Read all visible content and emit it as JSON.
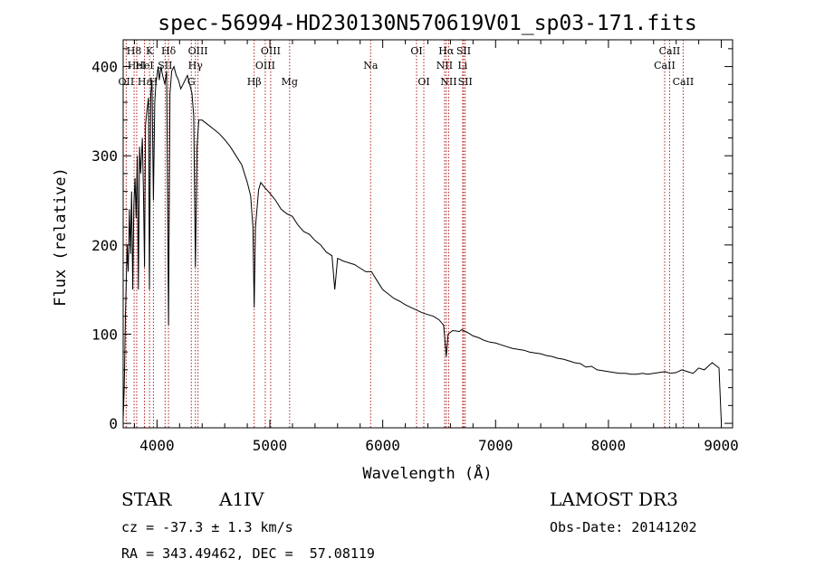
{
  "chart_data": {
    "type": "line",
    "title": "spec-56994-HD230130N570619V01_sp03-171.fits",
    "xlabel": "Wavelength (Å)",
    "ylabel": "Flux (relative)",
    "xlim": [
      3700,
      9100
    ],
    "ylim": [
      -5,
      430
    ],
    "xticks": [
      4000,
      5000,
      6000,
      7000,
      8000,
      9000
    ],
    "yticks": [
      0,
      100,
      200,
      300,
      400
    ],
    "series": [
      {
        "name": "flux",
        "points": [
          [
            3700,
            5
          ],
          [
            3710,
            40
          ],
          [
            3720,
            120
          ],
          [
            3735,
            200
          ],
          [
            3745,
            170
          ],
          [
            3755,
            240
          ],
          [
            3765,
            190
          ],
          [
            3775,
            260
          ],
          [
            3785,
            150
          ],
          [
            3795,
            245
          ],
          [
            3805,
            275
          ],
          [
            3815,
            230
          ],
          [
            3825,
            300
          ],
          [
            3835,
            150
          ],
          [
            3845,
            310
          ],
          [
            3855,
            280
          ],
          [
            3870,
            320
          ],
          [
            3880,
            260
          ],
          [
            3889,
            175
          ],
          [
            3898,
            335
          ],
          [
            3910,
            350
          ],
          [
            3925,
            365
          ],
          [
            3933,
            150
          ],
          [
            3945,
            370
          ],
          [
            3955,
            385
          ],
          [
            3968,
            250
          ],
          [
            3980,
            360
          ],
          [
            3990,
            380
          ],
          [
            4000,
            390
          ],
          [
            4010,
            400
          ],
          [
            4020,
            385
          ],
          [
            4035,
            400
          ],
          [
            4050,
            390
          ],
          [
            4070,
            380
          ],
          [
            4085,
            395
          ],
          [
            4102,
            110
          ],
          [
            4115,
            370
          ],
          [
            4130,
            395
          ],
          [
            4150,
            400
          ],
          [
            4170,
            390
          ],
          [
            4190,
            385
          ],
          [
            4210,
            375
          ],
          [
            4230,
            380
          ],
          [
            4250,
            385
          ],
          [
            4270,
            390
          ],
          [
            4290,
            380
          ],
          [
            4310,
            370
          ],
          [
            4325,
            345
          ],
          [
            4340,
            175
          ],
          [
            4355,
            310
          ],
          [
            4370,
            340
          ],
          [
            4400,
            340
          ],
          [
            4450,
            335
          ],
          [
            4500,
            330
          ],
          [
            4550,
            325
          ],
          [
            4600,
            318
          ],
          [
            4650,
            310
          ],
          [
            4700,
            300
          ],
          [
            4750,
            290
          ],
          [
            4800,
            270
          ],
          [
            4830,
            255
          ],
          [
            4850,
            220
          ],
          [
            4861,
            130
          ],
          [
            4872,
            220
          ],
          [
            4900,
            262
          ],
          [
            4920,
            270
          ],
          [
            4950,
            265
          ],
          [
            5000,
            258
          ],
          [
            5050,
            250
          ],
          [
            5100,
            240
          ],
          [
            5150,
            235
          ],
          [
            5200,
            232
          ],
          [
            5250,
            222
          ],
          [
            5300,
            215
          ],
          [
            5350,
            212
          ],
          [
            5400,
            205
          ],
          [
            5450,
            200
          ],
          [
            5500,
            192
          ],
          [
            5550,
            188
          ],
          [
            5575,
            150
          ],
          [
            5600,
            185
          ],
          [
            5650,
            182
          ],
          [
            5700,
            180
          ],
          [
            5750,
            178
          ],
          [
            5800,
            174
          ],
          [
            5850,
            170
          ],
          [
            5900,
            170
          ],
          [
            5950,
            160
          ],
          [
            6000,
            150
          ],
          [
            6050,
            145
          ],
          [
            6100,
            140
          ],
          [
            6150,
            137
          ],
          [
            6200,
            133
          ],
          [
            6250,
            130
          ],
          [
            6300,
            127
          ],
          [
            6350,
            124
          ],
          [
            6400,
            122
          ],
          [
            6450,
            120
          ],
          [
            6500,
            116
          ],
          [
            6540,
            110
          ],
          [
            6563,
            75
          ],
          [
            6580,
            100
          ],
          [
            6620,
            104
          ],
          [
            6680,
            103
          ],
          [
            6700,
            105
          ],
          [
            6750,
            102
          ],
          [
            6800,
            98
          ],
          [
            6850,
            96
          ],
          [
            6900,
            93
          ],
          [
            6950,
            91
          ],
          [
            7000,
            90
          ],
          [
            7050,
            88
          ],
          [
            7100,
            86
          ],
          [
            7150,
            84
          ],
          [
            7200,
            83
          ],
          [
            7250,
            82
          ],
          [
            7300,
            80
          ],
          [
            7350,
            79
          ],
          [
            7400,
            78
          ],
          [
            7450,
            76
          ],
          [
            7500,
            75
          ],
          [
            7550,
            73
          ],
          [
            7600,
            72
          ],
          [
            7650,
            70
          ],
          [
            7700,
            68
          ],
          [
            7750,
            67
          ],
          [
            7800,
            63
          ],
          [
            7850,
            64
          ],
          [
            7900,
            60
          ],
          [
            7950,
            59
          ],
          [
            8000,
            58
          ],
          [
            8050,
            57
          ],
          [
            8100,
            56
          ],
          [
            8150,
            56
          ],
          [
            8200,
            55
          ],
          [
            8250,
            55
          ],
          [
            8300,
            56
          ],
          [
            8350,
            55
          ],
          [
            8400,
            56
          ],
          [
            8450,
            57
          ],
          [
            8500,
            58
          ],
          [
            8550,
            56
          ],
          [
            8600,
            57
          ],
          [
            8650,
            60
          ],
          [
            8700,
            58
          ],
          [
            8750,
            56
          ],
          [
            8800,
            62
          ],
          [
            8850,
            60
          ],
          [
            8900,
            66
          ],
          [
            8920,
            68
          ],
          [
            8950,
            65
          ],
          [
            8980,
            62
          ],
          [
            9000,
            2
          ]
        ]
      }
    ],
    "lines": [
      {
        "name": "H8",
        "wave": 3797,
        "row": 0
      },
      {
        "name": "OII",
        "wave": 3727,
        "row": 2
      },
      {
        "name": "HeI",
        "wave": 3820,
        "row": 1
      },
      {
        "name": "Hε",
        "wave": 3889,
        "row": 2
      },
      {
        "name": "K",
        "wave": 3934,
        "row": 0
      },
      {
        "name": "HeI",
        "wave": 3889,
        "row": 1
      },
      {
        "name": "SII",
        "wave": 4072,
        "row": 1
      },
      {
        "name": "Hδ",
        "wave": 4102,
        "row": 0
      },
      {
        "name": "H",
        "wave": 3968,
        "row": 2
      },
      {
        "name": "OIII",
        "wave": 4363,
        "row": 0
      },
      {
        "name": "Hγ",
        "wave": 4340,
        "row": 1
      },
      {
        "name": "G",
        "wave": 4304,
        "row": 2
      },
      {
        "name": "Hβ",
        "wave": 4861,
        "row": 2
      },
      {
        "name": "OIII",
        "wave": 5007,
        "row": 0
      },
      {
        "name": "OIII",
        "wave": 4959,
        "row": 1
      },
      {
        "name": "Mg",
        "wave": 5175,
        "row": 2
      },
      {
        "name": "Na",
        "wave": 5893,
        "row": 1
      },
      {
        "name": "OI",
        "wave": 6300,
        "row": 0
      },
      {
        "name": "OI",
        "wave": 6364,
        "row": 2
      },
      {
        "name": "Hα",
        "wave": 6563,
        "row": 0
      },
      {
        "name": "SII",
        "wave": 6717,
        "row": 0
      },
      {
        "name": "NII",
        "wave": 6548,
        "row": 1
      },
      {
        "name": "Li",
        "wave": 6708,
        "row": 1
      },
      {
        "name": "NII",
        "wave": 6584,
        "row": 2
      },
      {
        "name": "SII",
        "wave": 6731,
        "row": 2
      },
      {
        "name": "CaII",
        "wave": 8542,
        "row": 0
      },
      {
        "name": "CaII",
        "wave": 8498,
        "row": 1
      },
      {
        "name": "CaII",
        "wave": 8662,
        "row": 2
      }
    ],
    "colors": {
      "flux": "#000000",
      "lines": "#b22222",
      "axes": "#000000"
    }
  },
  "info": {
    "object_type": "STAR",
    "subclass": "A1IV",
    "survey": "LAMOST DR3",
    "cz": "cz = -37.3 ± 1.3 km/s",
    "obs_date": "Obs-Date: 20141202",
    "coords": "RA = 343.49462, DEC =  57.08119"
  }
}
